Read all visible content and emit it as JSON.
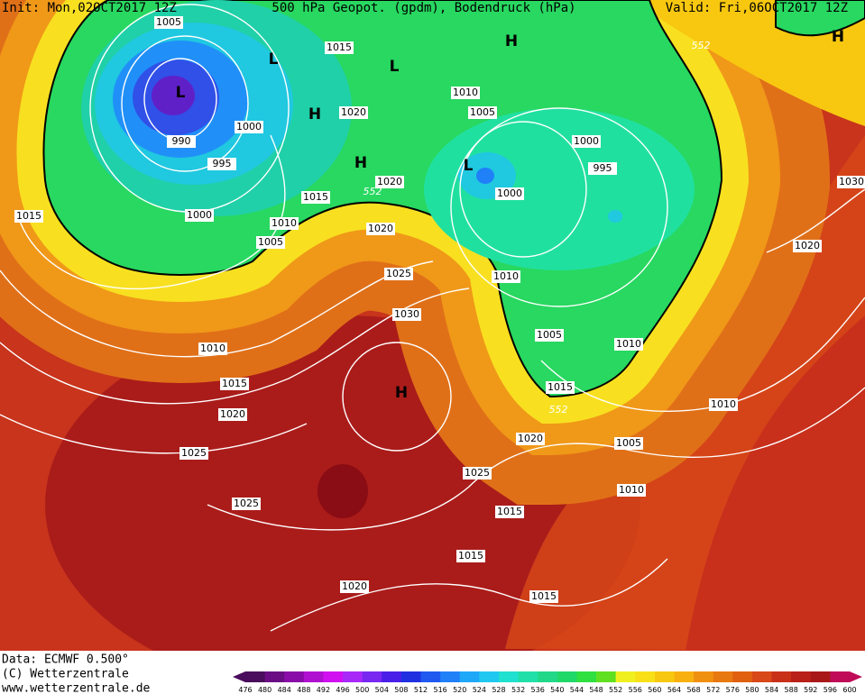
{
  "header": {
    "init": "Init: Mon,02OCT2017 12Z",
    "title": "500 hPa Geopot. (gpdm), Bodendruck (hPa)",
    "valid": "Valid: Fri,06OCT2017 12Z"
  },
  "isobar_labels": [
    1005,
    1015,
    1010,
    1005,
    1020,
    1000,
    990,
    1000,
    995,
    995,
    1020,
    1015,
    1000,
    1015,
    1000,
    1010,
    1005,
    1020,
    1020,
    1030,
    1025,
    1010,
    1030,
    1005,
    1010,
    1010,
    1015,
    1015,
    1010,
    1020,
    1020,
    1005,
    1025,
    1025,
    1010,
    1025,
    1015,
    1015,
    1015,
    1020
  ],
  "geopotential_labels": [
    552,
    552,
    552
  ],
  "pressure_centers": [
    "L",
    "L",
    "L",
    "L",
    "H",
    "H",
    "H",
    "H",
    "H"
  ],
  "footer": {
    "data": "Data: ECMWF  0.500°",
    "copyright": "(C) Wetterzentrale",
    "url": "www.wetterzentrale.de"
  },
  "colorbar": {
    "values": [
      476,
      480,
      484,
      488,
      492,
      496,
      500,
      504,
      508,
      512,
      516,
      520,
      524,
      528,
      532,
      536,
      540,
      544,
      548,
      552,
      556,
      560,
      564,
      568,
      572,
      576,
      580,
      584,
      588,
      592,
      596,
      600
    ],
    "colors": [
      "#4a0c5c",
      "#6a0c84",
      "#8a0ca8",
      "#b010d0",
      "#d010f0",
      "#a828f8",
      "#7828f0",
      "#4a20e8",
      "#2030e0",
      "#2058f0",
      "#2080f8",
      "#20a8f8",
      "#20c8f0",
      "#20e0d0",
      "#20e0a8",
      "#20d888",
      "#20d868",
      "#30e040",
      "#60e020",
      "#f0f020",
      "#f8e018",
      "#f8c810",
      "#f8b010",
      "#f09010",
      "#e87810",
      "#e06010",
      "#d84818",
      "#c83018",
      "#b82018",
      "#a81818",
      "#c00c58"
    ]
  }
}
